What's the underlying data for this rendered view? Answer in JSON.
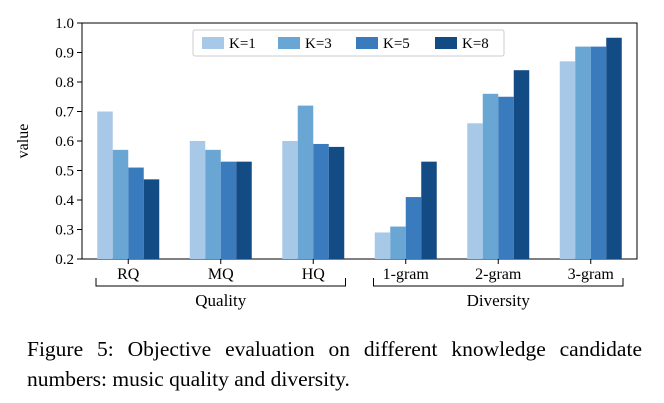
{
  "chart_data": {
    "type": "bar",
    "title": "",
    "xlabel": "",
    "ylabel": "value",
    "ylim": [
      0.2,
      1.0
    ],
    "yticks": [
      "0.2",
      "0.3",
      "0.4",
      "0.5",
      "0.6",
      "0.7",
      "0.8",
      "0.9",
      "1.0"
    ],
    "categories": [
      "RQ",
      "MQ",
      "HQ",
      "1-gram",
      "2-gram",
      "3-gram"
    ],
    "groups": [
      {
        "label": "Quality",
        "categories": [
          "RQ",
          "MQ",
          "HQ"
        ]
      },
      {
        "label": "Diversity",
        "categories": [
          "1-gram",
          "2-gram",
          "3-gram"
        ]
      }
    ],
    "series": [
      {
        "name": "K=1",
        "color": "#a8c8e8",
        "values": [
          0.7,
          0.6,
          0.6,
          0.29,
          0.66,
          0.87
        ]
      },
      {
        "name": "K=3",
        "color": "#6aa6d4",
        "values": [
          0.57,
          0.57,
          0.72,
          0.31,
          0.76,
          0.92
        ]
      },
      {
        "name": "K=5",
        "color": "#3a7bbd",
        "values": [
          0.51,
          0.53,
          0.59,
          0.41,
          0.75,
          0.92
        ]
      },
      {
        "name": "K=8",
        "color": "#134b85",
        "values": [
          0.47,
          0.53,
          0.58,
          0.53,
          0.84,
          0.95
        ]
      }
    ],
    "legend": "top-center",
    "grid": false
  },
  "caption": "Figure 5: Objective evaluation on different knowledge candidate numbers: music quality and diversity."
}
